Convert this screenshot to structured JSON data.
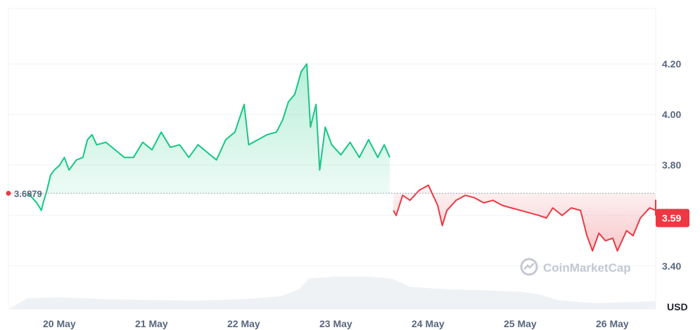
{
  "chart_data": {
    "type": "line",
    "x_labels": [
      "20 May",
      "21 May",
      "22 May",
      "23 May",
      "24 May",
      "25 May",
      "26 May"
    ],
    "y_ticks": [
      "3.40",
      "3.60",
      "3.80",
      "4.00",
      "4.20"
    ],
    "ylim": [
      3.23,
      4.42
    ],
    "unit": "USD",
    "reference_value": 3.6879,
    "reference_label": "3.6879",
    "current_value": 3.59,
    "current_label": "3.59",
    "watermark": "CoinMarketCap",
    "colors": {
      "up": "#16c784",
      "down": "#ea3943",
      "grid": "#eff2f5",
      "volume": "#eff2f5"
    },
    "x_range_days": [
      0,
      7
    ],
    "series": [
      {
        "points": [
          [
            -0.35,
            3.69
          ],
          [
            -0.3,
            3.67
          ],
          [
            -0.25,
            3.65
          ],
          [
            -0.2,
            3.62
          ],
          [
            -0.18,
            3.65
          ],
          [
            -0.14,
            3.7
          ],
          [
            -0.1,
            3.76
          ],
          [
            -0.06,
            3.78
          ],
          [
            0.0,
            3.8
          ],
          [
            0.05,
            3.83
          ],
          [
            0.1,
            3.78
          ],
          [
            0.18,
            3.82
          ],
          [
            0.25,
            3.83
          ],
          [
            0.3,
            3.9
          ],
          [
            0.35,
            3.92
          ],
          [
            0.4,
            3.88
          ],
          [
            0.5,
            3.89
          ],
          [
            0.6,
            3.86
          ],
          [
            0.7,
            3.83
          ],
          [
            0.8,
            3.83
          ],
          [
            0.9,
            3.89
          ],
          [
            1.0,
            3.86
          ],
          [
            1.1,
            3.93
          ],
          [
            1.2,
            3.87
          ],
          [
            1.3,
            3.88
          ],
          [
            1.4,
            3.83
          ],
          [
            1.5,
            3.88
          ],
          [
            1.6,
            3.85
          ],
          [
            1.7,
            3.82
          ],
          [
            1.8,
            3.9
          ],
          [
            1.9,
            3.93
          ],
          [
            2.0,
            4.04
          ],
          [
            2.05,
            3.88
          ],
          [
            2.15,
            3.9
          ],
          [
            2.25,
            3.92
          ],
          [
            2.35,
            3.93
          ],
          [
            2.42,
            3.98
          ],
          [
            2.48,
            4.05
          ],
          [
            2.55,
            4.08
          ],
          [
            2.62,
            4.17
          ],
          [
            2.68,
            4.2
          ],
          [
            2.72,
            3.95
          ],
          [
            2.78,
            4.04
          ],
          [
            2.82,
            3.78
          ],
          [
            2.88,
            3.95
          ],
          [
            2.95,
            3.88
          ],
          [
            3.05,
            3.84
          ],
          [
            3.15,
            3.89
          ],
          [
            3.25,
            3.83
          ],
          [
            3.35,
            3.9
          ],
          [
            3.45,
            3.83
          ],
          [
            3.52,
            3.88
          ],
          [
            3.58,
            3.83
          ]
        ]
      },
      {
        "points": [
          [
            3.62,
            3.62
          ],
          [
            3.65,
            3.6
          ],
          [
            3.72,
            3.68
          ],
          [
            3.8,
            3.66
          ],
          [
            3.9,
            3.7
          ],
          [
            4.0,
            3.72
          ],
          [
            4.05,
            3.68
          ],
          [
            4.1,
            3.64
          ],
          [
            4.15,
            3.56
          ],
          [
            4.2,
            3.62
          ],
          [
            4.3,
            3.66
          ],
          [
            4.4,
            3.68
          ],
          [
            4.5,
            3.67
          ],
          [
            4.6,
            3.65
          ],
          [
            4.7,
            3.66
          ],
          [
            4.8,
            3.64
          ],
          [
            4.9,
            3.63
          ],
          [
            5.0,
            3.62
          ],
          [
            5.1,
            3.61
          ],
          [
            5.2,
            3.6
          ],
          [
            5.28,
            3.59
          ],
          [
            5.35,
            3.63
          ],
          [
            5.45,
            3.6
          ],
          [
            5.55,
            3.63
          ],
          [
            5.65,
            3.62
          ],
          [
            5.72,
            3.52
          ],
          [
            5.78,
            3.46
          ],
          [
            5.85,
            3.53
          ],
          [
            5.92,
            3.5
          ],
          [
            6.0,
            3.51
          ],
          [
            6.05,
            3.46
          ],
          [
            6.15,
            3.54
          ],
          [
            6.22,
            3.52
          ],
          [
            6.3,
            3.59
          ],
          [
            6.4,
            3.63
          ],
          [
            6.5,
            3.62
          ],
          [
            6.6,
            3.63
          ],
          [
            6.7,
            3.66
          ],
          [
            6.8,
            3.63
          ],
          [
            6.85,
            3.6
          ]
        ]
      }
    ],
    "volume": [
      [
        -0.35,
        0.22
      ],
      [
        0.0,
        0.24
      ],
      [
        0.5,
        0.2
      ],
      [
        1.0,
        0.18
      ],
      [
        1.5,
        0.17
      ],
      [
        2.0,
        0.2
      ],
      [
        2.4,
        0.26
      ],
      [
        2.6,
        0.4
      ],
      [
        2.7,
        0.62
      ],
      [
        3.0,
        0.66
      ],
      [
        3.3,
        0.66
      ],
      [
        3.6,
        0.62
      ],
      [
        3.8,
        0.45
      ],
      [
        4.2,
        0.4
      ],
      [
        4.6,
        0.38
      ],
      [
        5.0,
        0.35
      ],
      [
        5.2,
        0.3
      ],
      [
        5.4,
        0.18
      ],
      [
        5.8,
        0.12
      ],
      [
        6.2,
        0.14
      ],
      [
        6.6,
        0.16
      ],
      [
        6.85,
        0.15
      ]
    ]
  }
}
